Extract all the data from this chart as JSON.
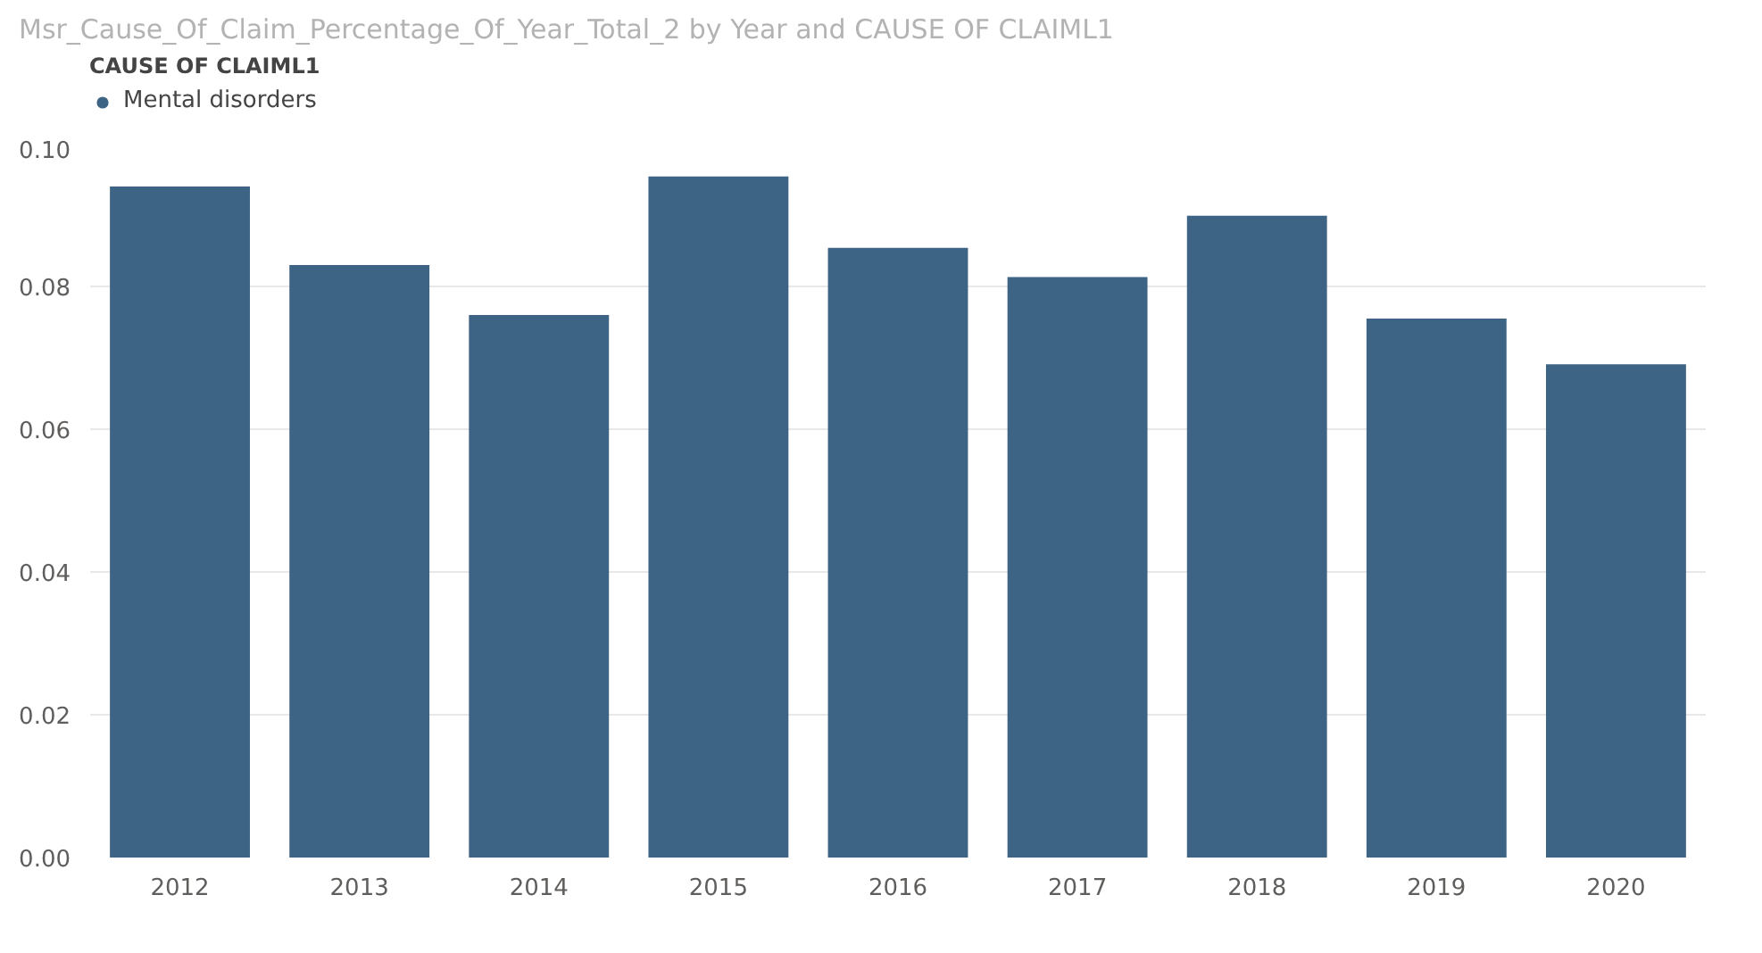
{
  "chart_data": {
    "type": "bar",
    "title": "Msr_Cause_Of_Claim_Percentage_Of_Year_Total_2 by Year and CAUSE OF CLAIML1",
    "legend_title": "CAUSE OF CLAIML1",
    "categories": [
      "2012",
      "2013",
      "2014",
      "2015",
      "2016",
      "2017",
      "2018",
      "2019",
      "2020"
    ],
    "series": [
      {
        "name": "Mental disorders",
        "color": "#3e6485",
        "values": [
          0.094,
          0.083,
          0.076,
          0.0954,
          0.0854,
          0.0813,
          0.0899,
          0.0755,
          0.0691
        ]
      }
    ],
    "ylim": [
      0,
      0.1
    ],
    "yticks": [
      {
        "value": 0,
        "label": "0.00"
      },
      {
        "value": 0.02,
        "label": "0.02"
      },
      {
        "value": 0.04,
        "label": "0.04"
      },
      {
        "value": 0.06,
        "label": "0.06"
      },
      {
        "value": 0.08,
        "label": "0.08"
      },
      {
        "value": 0.1,
        "label": "0.10"
      }
    ],
    "grid": "y",
    "legend": "top left"
  }
}
